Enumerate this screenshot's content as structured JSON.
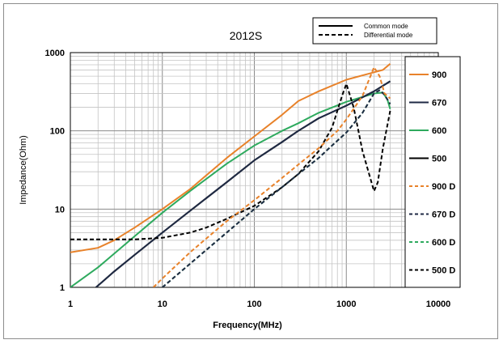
{
  "chart_data": {
    "type": "line",
    "title": "2012S",
    "xlabel": "Frequency(MHz)",
    "ylabel": "Impedance(Ohm)",
    "xscale": "log",
    "yscale": "log",
    "xlim": [
      1,
      10000
    ],
    "ylim": [
      1,
      1000
    ],
    "grid": true,
    "x_tick_labels": [
      "1",
      "10",
      "100",
      "1000",
      "10000"
    ],
    "y_tick_labels": [
      "1",
      "10",
      "100",
      "1000"
    ],
    "mode_legend": {
      "placement": "top-right",
      "entries": [
        {
          "label": "Common mode",
          "dash": "solid"
        },
        {
          "label": "Differential mode",
          "dash": "dashed"
        }
      ]
    },
    "legend_placement": "right",
    "series": [
      {
        "name": "900",
        "color": "#E8822A",
        "dash": "solid",
        "points": [
          [
            1,
            2.8
          ],
          [
            2,
            3.2
          ],
          [
            3,
            4
          ],
          [
            5,
            5.8
          ],
          [
            10,
            10
          ],
          [
            20,
            18
          ],
          [
            50,
            45
          ],
          [
            100,
            85
          ],
          [
            200,
            160
          ],
          [
            300,
            240
          ],
          [
            500,
            320
          ],
          [
            1000,
            450
          ],
          [
            2000,
            560
          ],
          [
            2500,
            600
          ],
          [
            3000,
            720
          ]
        ]
      },
      {
        "name": "670",
        "color": "#1F2A44",
        "dash": "solid",
        "points": [
          [
            1.9,
            1
          ],
          [
            3,
            1.6
          ],
          [
            5,
            2.6
          ],
          [
            10,
            5
          ],
          [
            20,
            9.5
          ],
          [
            50,
            22
          ],
          [
            100,
            42
          ],
          [
            200,
            72
          ],
          [
            300,
            100
          ],
          [
            500,
            145
          ],
          [
            1000,
            210
          ],
          [
            2000,
            320
          ],
          [
            3000,
            430
          ]
        ]
      },
      {
        "name": "600",
        "color": "#2EAA5E",
        "dash": "solid",
        "points": [
          [
            1,
            1
          ],
          [
            2,
            1.8
          ],
          [
            5,
            4.5
          ],
          [
            10,
            9
          ],
          [
            20,
            17
          ],
          [
            50,
            38
          ],
          [
            100,
            65
          ],
          [
            200,
            100
          ],
          [
            300,
            125
          ],
          [
            500,
            170
          ],
          [
            1000,
            235
          ],
          [
            2000,
            300
          ],
          [
            2500,
            310
          ],
          [
            2800,
            250
          ],
          [
            3000,
            190
          ]
        ]
      },
      {
        "name": "500",
        "color": "#000000",
        "dash": "solid",
        "points": [
          [
            1.9,
            1
          ],
          [
            3,
            1.6
          ],
          [
            5,
            2.6
          ],
          [
            10,
            5
          ],
          [
            20,
            9.5
          ],
          [
            50,
            22
          ],
          [
            100,
            42
          ],
          [
            200,
            72
          ],
          [
            300,
            100
          ],
          [
            500,
            145
          ],
          [
            1000,
            210
          ],
          [
            2000,
            320
          ],
          [
            3000,
            430
          ]
        ]
      },
      {
        "name": "900 D",
        "color": "#E8822A",
        "dash": "dashed",
        "points": [
          [
            8,
            1
          ],
          [
            10,
            1.3
          ],
          [
            20,
            2.8
          ],
          [
            50,
            7
          ],
          [
            100,
            13
          ],
          [
            200,
            25
          ],
          [
            300,
            37
          ],
          [
            500,
            60
          ],
          [
            800,
            100
          ],
          [
            1000,
            140
          ],
          [
            1500,
            280
          ],
          [
            2000,
            650
          ],
          [
            2300,
            500
          ],
          [
            2600,
            300
          ],
          [
            3000,
            260
          ]
        ]
      },
      {
        "name": "670 D",
        "color": "#1F2A44",
        "dash": "dashed",
        "points": [
          [
            10,
            1
          ],
          [
            20,
            2
          ],
          [
            50,
            5
          ],
          [
            100,
            10
          ],
          [
            200,
            19
          ],
          [
            300,
            28
          ],
          [
            500,
            45
          ],
          [
            700,
            65
          ],
          [
            1000,
            95
          ],
          [
            1500,
            170
          ],
          [
            2000,
            300
          ],
          [
            2300,
            330
          ],
          [
            2600,
            290
          ],
          [
            3000,
            220
          ]
        ]
      },
      {
        "name": "600 D",
        "color": "#2EAA5E",
        "dash": "dashed",
        "points": [
          [
            10,
            1
          ],
          [
            20,
            2
          ],
          [
            50,
            5
          ],
          [
            100,
            10
          ],
          [
            200,
            19
          ],
          [
            300,
            28
          ],
          [
            500,
            45
          ],
          [
            700,
            65
          ],
          [
            1000,
            95
          ],
          [
            1500,
            170
          ],
          [
            2000,
            300
          ],
          [
            2300,
            330
          ],
          [
            2600,
            290
          ],
          [
            3000,
            220
          ]
        ]
      },
      {
        "name": "500 D",
        "color": "#000000",
        "dash": "dashed",
        "points": [
          [
            1,
            4.1
          ],
          [
            5,
            4.1
          ],
          [
            10,
            4.3
          ],
          [
            20,
            5
          ],
          [
            30,
            5.8
          ],
          [
            50,
            7.5
          ],
          [
            100,
            11
          ],
          [
            200,
            19
          ],
          [
            300,
            28
          ],
          [
            500,
            55
          ],
          [
            700,
            110
          ],
          [
            900,
            280
          ],
          [
            1000,
            400
          ],
          [
            1200,
            200
          ],
          [
            1500,
            55
          ],
          [
            2000,
            17
          ],
          [
            2200,
            22
          ],
          [
            2500,
            60
          ],
          [
            3000,
            180
          ]
        ]
      }
    ]
  }
}
